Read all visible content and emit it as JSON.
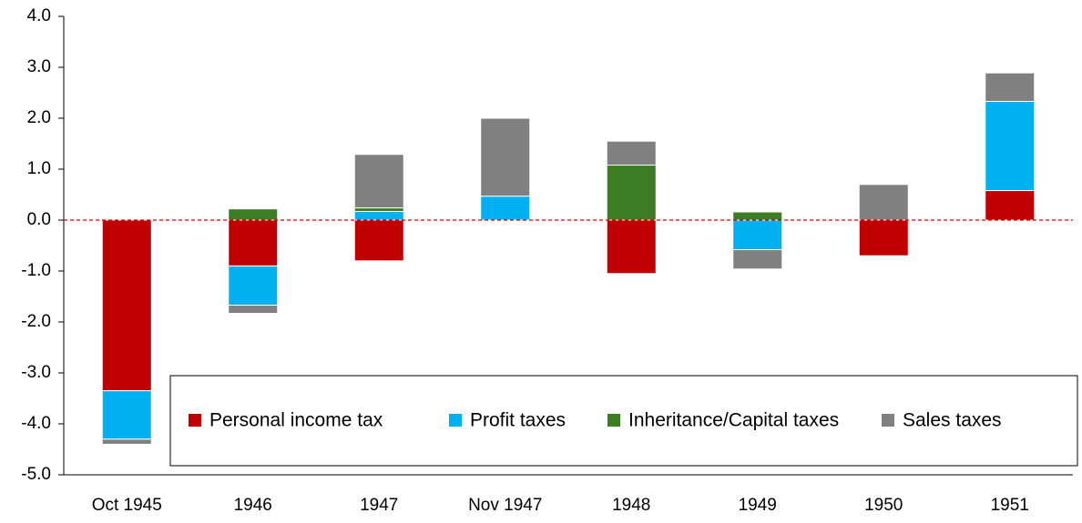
{
  "chart_data": {
    "type": "stacked_bar",
    "categories": [
      "Oct 1945",
      "1946",
      "1947",
      "Nov 1947",
      "1948",
      "1949",
      "1950",
      "1951"
    ],
    "series": [
      {
        "name": "Personal income tax",
        "color": "#c00000",
        "values": [
          -3.35,
          -0.9,
          -0.8,
          0,
          -1.05,
          0,
          -0.7,
          0.58
        ]
      },
      {
        "name": "Profit taxes",
        "color": "#00b0f0",
        "values": [
          -0.95,
          -0.77,
          0.17,
          0.47,
          0,
          -0.58,
          0,
          1.75
        ]
      },
      {
        "name": "Inheritance/Capital taxes",
        "color": "#3a7d22",
        "values": [
          0,
          0.22,
          0.07,
          0,
          1.08,
          0.16,
          0,
          0
        ]
      },
      {
        "name": "Sales taxes",
        "color": "#808080",
        "values": [
          -0.1,
          -0.16,
          1.05,
          1.53,
          0.47,
          -0.38,
          0.7,
          0.56
        ]
      }
    ],
    "ylim": [
      -5,
      4
    ],
    "yticks": [
      {
        "value": -5,
        "label": "-5.0"
      },
      {
        "value": -4,
        "label": "-4.0"
      },
      {
        "value": -3,
        "label": "-3.0"
      },
      {
        "value": -2,
        "label": "-2.0"
      },
      {
        "value": -1,
        "label": "-1.0"
      },
      {
        "value": 0,
        "label": "0.0"
      },
      {
        "value": 1,
        "label": "1.0"
      },
      {
        "value": 2,
        "label": "2.0"
      },
      {
        "value": 3,
        "label": "3.0"
      },
      {
        "value": 4,
        "label": "4.0"
      }
    ],
    "legend": "bottom",
    "zero_line_color": "#e00000"
  }
}
